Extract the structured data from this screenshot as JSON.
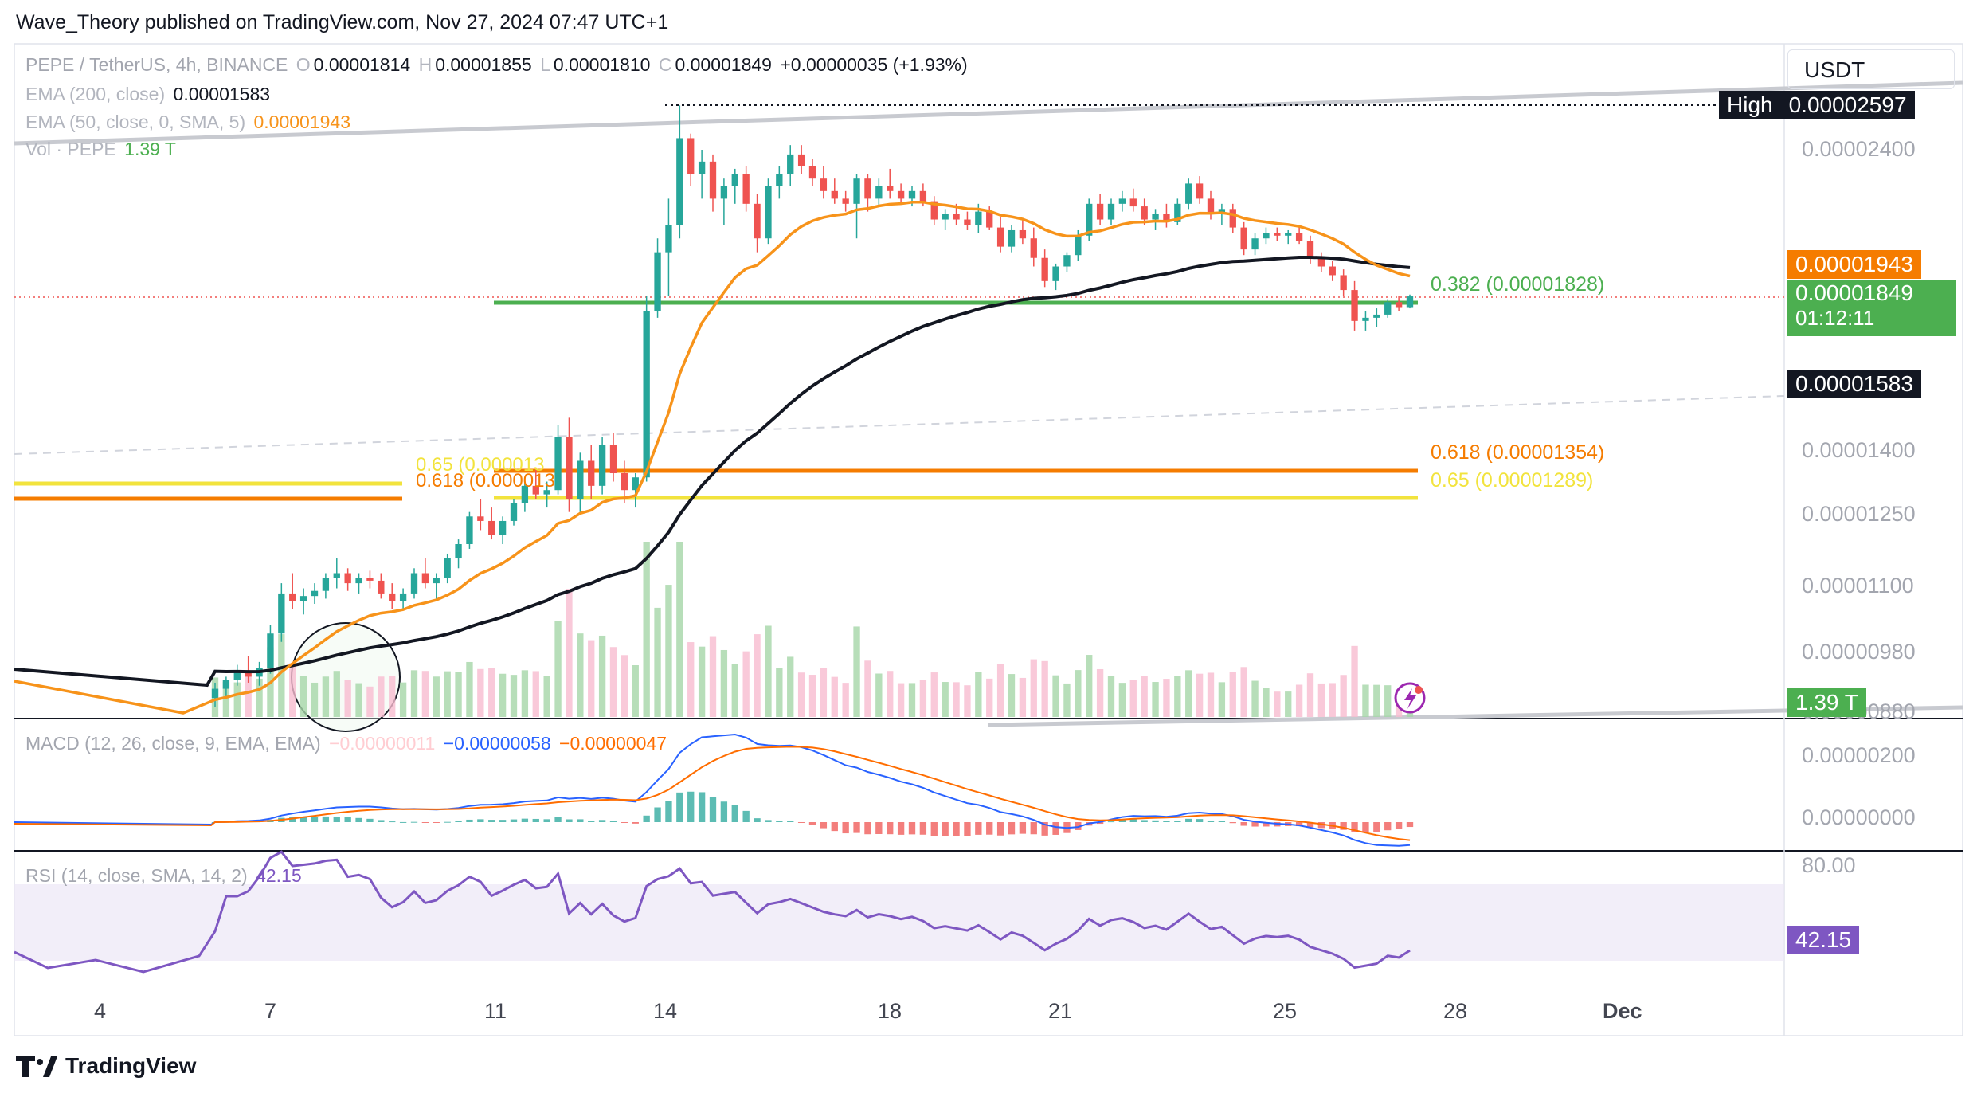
{
  "published": "Wave_Theory published on TradingView.com, Nov 27, 2024 07:47 UTC+1",
  "legend": {
    "symbol": "PEPE / TetherUS, 4h, BINANCE",
    "o_label": "O",
    "o": "0.00001814",
    "h_label": "H",
    "h": "0.00001855",
    "l_label": "L",
    "l": "0.00001810",
    "c_label": "C",
    "c": "0.00001849",
    "change": "+0.00000035 (+1.93%)",
    "ema200_label": "EMA (200, close)",
    "ema200": "0.00001583",
    "ema50_label": "EMA (50, close, 0, SMA, 5)",
    "ema50": "0.00001943",
    "vol_label": "Vol · PEPE",
    "vol": "1.39 T",
    "macd_label": "MACD (12, 26, close, 9, EMA, EMA)",
    "macd_hist": "−0.00000011",
    "macd_line": "−0.00000058",
    "macd_signal": "−0.00000047",
    "rsi_label": "RSI (14, close, SMA, 14, 2)",
    "rsi": "42.15"
  },
  "currency": "USDT",
  "price_axis": [
    "0.00002400",
    "0.00001400",
    "0.00001250",
    "0.00001100",
    "0.00000980",
    "0.00000880"
  ],
  "macd_axis": [
    "0.00000200",
    "0.00000000"
  ],
  "rsi_axis": [
    "80.00"
  ],
  "tags": {
    "high_label": "High",
    "high": "0.00002597",
    "ema50": "0.00001943",
    "last": "0.00001849",
    "countdown": "01:12:11",
    "ema200": "0.00001583",
    "vol": "1.39 T",
    "rsi": "42.15"
  },
  "fib": {
    "f382": "0.382 (0.00001828)",
    "f618_right": "0.618 (0.00001354)",
    "f65_right": "0.65 (0.00001289)",
    "f65_left": "0.65 (0.000013",
    "f618_left": "0.618 (0.000013"
  },
  "x_axis": [
    "4",
    "7",
    "11",
    "14",
    "18",
    "21",
    "25",
    "28",
    "Dec"
  ],
  "footer": "TradingView",
  "colors": {
    "up": "#26a69a",
    "down": "#ef5350",
    "ema50": "#f7931a",
    "ema200": "#131722",
    "fib_green": "#4caf50",
    "fib_orange": "#f57c00",
    "fib_yellow": "#f2e33d",
    "macd": "#2962ff",
    "signal": "#ff6d00",
    "rsi": "#7e57c2"
  },
  "chart_data": {
    "type": "candlestick",
    "symbol": "PEPE / TetherUS",
    "interval": "4h",
    "y_scale": "log",
    "ylim": [
      8.8e-06,
      2.65e-05
    ],
    "candles_ohlc": [
      [
        9.05e-06,
        9.3e-06,
        8.9e-06,
        9.2e-06
      ],
      [
        9.2e-06,
        9.4e-06,
        9.05e-06,
        9.35e-06
      ],
      [
        9.35e-06,
        9.6e-06,
        9.25e-06,
        9.5e-06
      ],
      [
        9.5e-06,
        9.75e-06,
        9.3e-06,
        9.4e-06
      ],
      [
        9.4e-06,
        9.65e-06,
        9.25e-06,
        9.55e-06
      ],
      [
        9.55e-06,
        1.03e-05,
        9.45e-06,
        1.015e-05
      ],
      [
        1.015e-05,
        1.11e-05,
        1e-05,
        1.09e-05
      ],
      [
        1.09e-05,
        1.13e-05,
        1.06e-05,
        1.075e-05
      ],
      [
        1.075e-05,
        1.1e-05,
        1.05e-05,
        1.085e-05
      ],
      [
        1.085e-05,
        1.11e-05,
        1.07e-05,
        1.095e-05
      ],
      [
        1.095e-05,
        1.13e-05,
        1.08e-05,
        1.12e-05
      ],
      [
        1.12e-05,
        1.16e-05,
        1.1e-05,
        1.13e-05
      ],
      [
        1.13e-05,
        1.14e-05,
        1.095e-05,
        1.11e-05
      ],
      [
        1.11e-05,
        1.13e-05,
        1.09e-05,
        1.12e-05
      ],
      [
        1.12e-05,
        1.135e-05,
        1.1e-05,
        1.115e-05
      ],
      [
        1.115e-05,
        1.13e-05,
        1.08e-05,
        1.09e-05
      ],
      [
        1.09e-05,
        1.11e-05,
        1.06e-05,
        1.075e-05
      ],
      [
        1.075e-05,
        1.1e-05,
        1.06e-05,
        1.09e-05
      ],
      [
        1.09e-05,
        1.14e-05,
        1.08e-05,
        1.13e-05
      ],
      [
        1.13e-05,
        1.16e-05,
        1.1e-05,
        1.11e-05
      ],
      [
        1.11e-05,
        1.13e-05,
        1.08e-05,
        1.12e-05
      ],
      [
        1.12e-05,
        1.17e-05,
        1.11e-05,
        1.16e-05
      ],
      [
        1.16e-05,
        1.2e-05,
        1.14e-05,
        1.19e-05
      ],
      [
        1.19e-05,
        1.26e-05,
        1.18e-05,
        1.25e-05
      ],
      [
        1.25e-05,
        1.29e-05,
        1.22e-05,
        1.24e-05
      ],
      [
        1.24e-05,
        1.27e-05,
        1.2e-05,
        1.21e-05
      ],
      [
        1.21e-05,
        1.25e-05,
        1.19e-05,
        1.24e-05
      ],
      [
        1.24e-05,
        1.29e-05,
        1.23e-05,
        1.28e-05
      ],
      [
        1.28e-05,
        1.33e-05,
        1.26e-05,
        1.32e-05
      ],
      [
        1.32e-05,
        1.36e-05,
        1.29e-05,
        1.3e-05
      ],
      [
        1.3e-05,
        1.33e-05,
        1.27e-05,
        1.31e-05
      ],
      [
        1.31e-05,
        1.47e-05,
        1.3e-05,
        1.44e-05
      ],
      [
        1.44e-05,
        1.49e-05,
        1.26e-05,
        1.29e-05
      ],
      [
        1.29e-05,
        1.4e-05,
        1.26e-05,
        1.38e-05
      ],
      [
        1.38e-05,
        1.42e-05,
        1.29e-05,
        1.32e-05
      ],
      [
        1.32e-05,
        1.44e-05,
        1.3e-05,
        1.42e-05
      ],
      [
        1.42e-05,
        1.45e-05,
        1.33e-05,
        1.35e-05
      ],
      [
        1.35e-05,
        1.38e-05,
        1.28e-05,
        1.31e-05
      ],
      [
        1.31e-05,
        1.35e-05,
        1.27e-05,
        1.34e-05
      ],
      [
        1.34e-05,
        1.85e-05,
        1.33e-05,
        1.8e-05
      ],
      [
        1.8e-05,
        2.05e-05,
        1.78e-05,
        2e-05
      ],
      [
        2e-05,
        2.2e-05,
        1.85e-05,
        2.1e-05
      ],
      [
        2.1e-05,
        2.597e-05,
        2.05e-05,
        2.45e-05
      ],
      [
        2.45e-05,
        2.47e-05,
        2.25e-05,
        2.3e-05
      ],
      [
        2.3e-05,
        2.4e-05,
        2.2e-05,
        2.35e-05
      ],
      [
        2.35e-05,
        2.38e-05,
        2.15e-05,
        2.2e-05
      ],
      [
        2.2e-05,
        2.28e-05,
        2.1e-05,
        2.25e-05
      ],
      [
        2.25e-05,
        2.32e-05,
        2.18e-05,
        2.3e-05
      ],
      [
        2.3e-05,
        2.33e-05,
        2.15e-05,
        2.18e-05
      ],
      [
        2.18e-05,
        2.22e-05,
        2e-05,
        2.05e-05
      ],
      [
        2.05e-05,
        2.28e-05,
        2.03e-05,
        2.25e-05
      ],
      [
        2.25e-05,
        2.33e-05,
        2.2e-05,
        2.3e-05
      ],
      [
        2.3e-05,
        2.42e-05,
        2.25e-05,
        2.38e-05
      ],
      [
        2.38e-05,
        2.42e-05,
        2.3e-05,
        2.33e-05
      ],
      [
        2.33e-05,
        2.36e-05,
        2.25e-05,
        2.28e-05
      ],
      [
        2.28e-05,
        2.33e-05,
        2.2e-05,
        2.23e-05
      ],
      [
        2.23e-05,
        2.28e-05,
        2.18e-05,
        2.2e-05
      ],
      [
        2.2e-05,
        2.23e-05,
        2.15e-05,
        2.18e-05
      ],
      [
        2.18e-05,
        2.3e-05,
        2.05e-05,
        2.28e-05
      ],
      [
        2.28e-05,
        2.3e-05,
        2.15e-05,
        2.2e-05
      ],
      [
        2.2e-05,
        2.28e-05,
        2.17e-05,
        2.25e-05
      ],
      [
        2.25e-05,
        2.32e-05,
        2.2e-05,
        2.23e-05
      ],
      [
        2.23e-05,
        2.26e-05,
        2.18e-05,
        2.2e-05
      ],
      [
        2.2e-05,
        2.25e-05,
        2.17e-05,
        2.23e-05
      ],
      [
        2.23e-05,
        2.26e-05,
        2.17e-05,
        2.19e-05
      ],
      [
        2.19e-05,
        2.21e-05,
        2.1e-05,
        2.12e-05
      ],
      [
        2.12e-05,
        2.16e-05,
        2.08e-05,
        2.14e-05
      ],
      [
        2.14e-05,
        2.18e-05,
        2.1e-05,
        2.12e-05
      ],
      [
        2.12e-05,
        2.15e-05,
        2.08e-05,
        2.1e-05
      ],
      [
        2.1e-05,
        2.18e-05,
        2.07e-05,
        2.15e-05
      ],
      [
        2.15e-05,
        2.17e-05,
        2.08e-05,
        2.09e-05
      ],
      [
        2.09e-05,
        2.13e-05,
        2e-05,
        2.02e-05
      ],
      [
        2.02e-05,
        2.1e-05,
        2e-05,
        2.08e-05
      ],
      [
        2.08e-05,
        2.12e-05,
        2.03e-05,
        2.05e-05
      ],
      [
        2.05e-05,
        2.09e-05,
        1.95e-05,
        1.98e-05
      ],
      [
        1.98e-05,
        2.01e-05,
        1.88e-05,
        1.9e-05
      ],
      [
        1.9e-05,
        1.96e-05,
        1.87e-05,
        1.95e-05
      ],
      [
        1.95e-05,
        2e-05,
        1.93e-05,
        1.99e-05
      ],
      [
        1.99e-05,
        2.08e-05,
        1.97e-05,
        2.06e-05
      ],
      [
        2.06e-05,
        2.2e-05,
        2.04e-05,
        2.18e-05
      ],
      [
        2.18e-05,
        2.22e-05,
        2.1e-05,
        2.12e-05
      ],
      [
        2.12e-05,
        2.2e-05,
        2.1e-05,
        2.18e-05
      ],
      [
        2.18e-05,
        2.23e-05,
        2.15e-05,
        2.2e-05
      ],
      [
        2.2e-05,
        2.24e-05,
        2.15e-05,
        2.17e-05
      ],
      [
        2.17e-05,
        2.2e-05,
        2.1e-05,
        2.12e-05
      ],
      [
        2.12e-05,
        2.16e-05,
        2.08e-05,
        2.14e-05
      ],
      [
        2.14e-05,
        2.18e-05,
        2.09e-05,
        2.11e-05
      ],
      [
        2.11e-05,
        2.2e-05,
        2.1e-05,
        2.18e-05
      ],
      [
        2.18e-05,
        2.28e-05,
        2.16e-05,
        2.26e-05
      ],
      [
        2.26e-05,
        2.29e-05,
        2.18e-05,
        2.2e-05
      ],
      [
        2.2e-05,
        2.23e-05,
        2.12e-05,
        2.14e-05
      ],
      [
        2.14e-05,
        2.18e-05,
        2.1e-05,
        2.16e-05
      ],
      [
        2.16e-05,
        2.18e-05,
        2.07e-05,
        2.09e-05
      ],
      [
        2.09e-05,
        2.11e-05,
        1.99e-05,
        2.01e-05
      ],
      [
        2.01e-05,
        2.07e-05,
        1.99e-05,
        2.05e-05
      ],
      [
        2.05e-05,
        2.09e-05,
        2.03e-05,
        2.07e-05
      ],
      [
        2.07e-05,
        2.09e-05,
        2.04e-05,
        2.06e-05
      ],
      [
        2.06e-05,
        2.08e-05,
        2.03e-05,
        2.07e-05
      ],
      [
        2.07e-05,
        2.1e-05,
        2.03e-05,
        2.04e-05
      ],
      [
        2.04e-05,
        2.06e-05,
        1.96e-05,
        1.98e-05
      ],
      [
        1.98e-05,
        2e-05,
        1.93e-05,
        1.95e-05
      ],
      [
        1.95e-05,
        1.97e-05,
        1.9e-05,
        1.92e-05
      ],
      [
        1.92e-05,
        1.94e-05,
        1.85e-05,
        1.87e-05
      ],
      [
        1.87e-05,
        1.9e-05,
        1.74e-05,
        1.77e-05
      ],
      [
        1.77e-05,
        1.8e-05,
        1.74e-05,
        1.78e-05
      ],
      [
        1.78e-05,
        1.81e-05,
        1.75e-05,
        1.79e-05
      ],
      [
        1.79e-05,
        1.84e-05,
        1.78e-05,
        1.83e-05
      ],
      [
        1.83e-05,
        1.85e-05,
        1.8e-05,
        1.814e-05
      ],
      [
        1.814e-05,
        1.855e-05,
        1.81e-05,
        1.849e-05
      ]
    ],
    "annotations": [
      "0.382 (0.00001828)",
      "0.618 (0.00001354)",
      "0.65 (0.00001289)",
      "High 0.00002597"
    ],
    "x_ticks": [
      "4",
      "7",
      "11",
      "14",
      "18",
      "21",
      "25",
      "28",
      "Dec"
    ],
    "macd": {
      "hist": -1.1e-07,
      "macd": -5.8e-07,
      "signal": -4.7e-07
    },
    "rsi": 42.15,
    "grid": false
  }
}
